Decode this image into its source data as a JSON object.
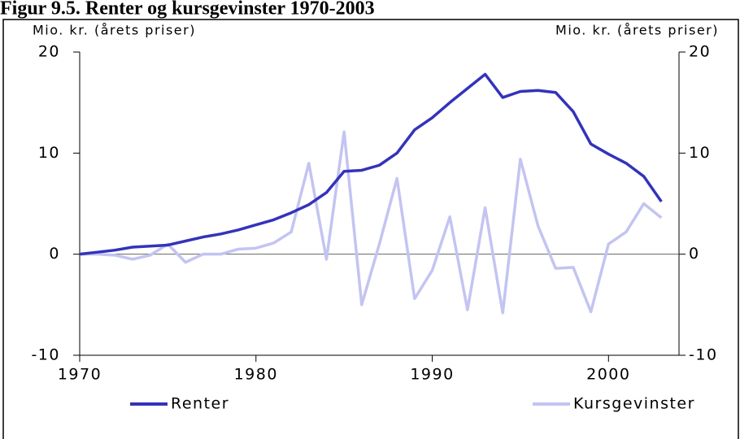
{
  "chart_data": {
    "type": "line",
    "title": "Figur 9.5. Renter og kursgevinster 1970-2003",
    "y_label": "Mio. kr. (årets priser)",
    "y2_label": "Mio. kr. (årets priser)",
    "x": [
      1970,
      1971,
      1972,
      1973,
      1974,
      1975,
      1976,
      1977,
      1978,
      1979,
      1980,
      1981,
      1982,
      1983,
      1984,
      1985,
      1986,
      1987,
      1988,
      1989,
      1990,
      1991,
      1992,
      1993,
      1994,
      1995,
      1996,
      1997,
      1998,
      1999,
      2000,
      2001,
      2002,
      2003
    ],
    "series": [
      {
        "name": "Renter",
        "color": "#3333bb",
        "values": [
          0,
          0.2,
          0.4,
          0.7,
          0.8,
          0.9,
          1.3,
          1.7,
          2.0,
          2.4,
          2.9,
          3.4,
          4.1,
          4.9,
          6.1,
          8.2,
          8.3,
          8.8,
          10.0,
          12.3,
          13.5,
          15.0,
          16.4,
          17.8,
          15.5,
          16.1,
          16.2,
          16.0,
          14.1,
          10.9,
          9.9,
          9.0,
          7.7,
          5.2
        ]
      },
      {
        "name": "Kursgevinster",
        "color": "#c4c4f2",
        "values": [
          0,
          0,
          -0.1,
          -0.5,
          -0.1,
          1.0,
          -0.8,
          0,
          0,
          0.5,
          0.6,
          1.1,
          2.2,
          9.0,
          -0.5,
          12.1,
          -5.0,
          1.0,
          7.5,
          -4.4,
          -1.6,
          3.7,
          -5.5,
          4.6,
          -5.8,
          9.4,
          2.8,
          -1.4,
          -1.3,
          -5.7,
          1.0,
          2.2,
          5.0,
          3.6
        ]
      }
    ],
    "xlim": [
      1970,
      2004
    ],
    "xticks": [
      1970,
      1980,
      1990,
      2000
    ],
    "ylim": [
      -10,
      20
    ],
    "yticks": [
      -10,
      0,
      10,
      20
    ],
    "y2lim": [
      -10,
      20
    ],
    "y2ticks": [
      -10,
      0,
      10,
      20
    ],
    "legend": "bottom"
  }
}
